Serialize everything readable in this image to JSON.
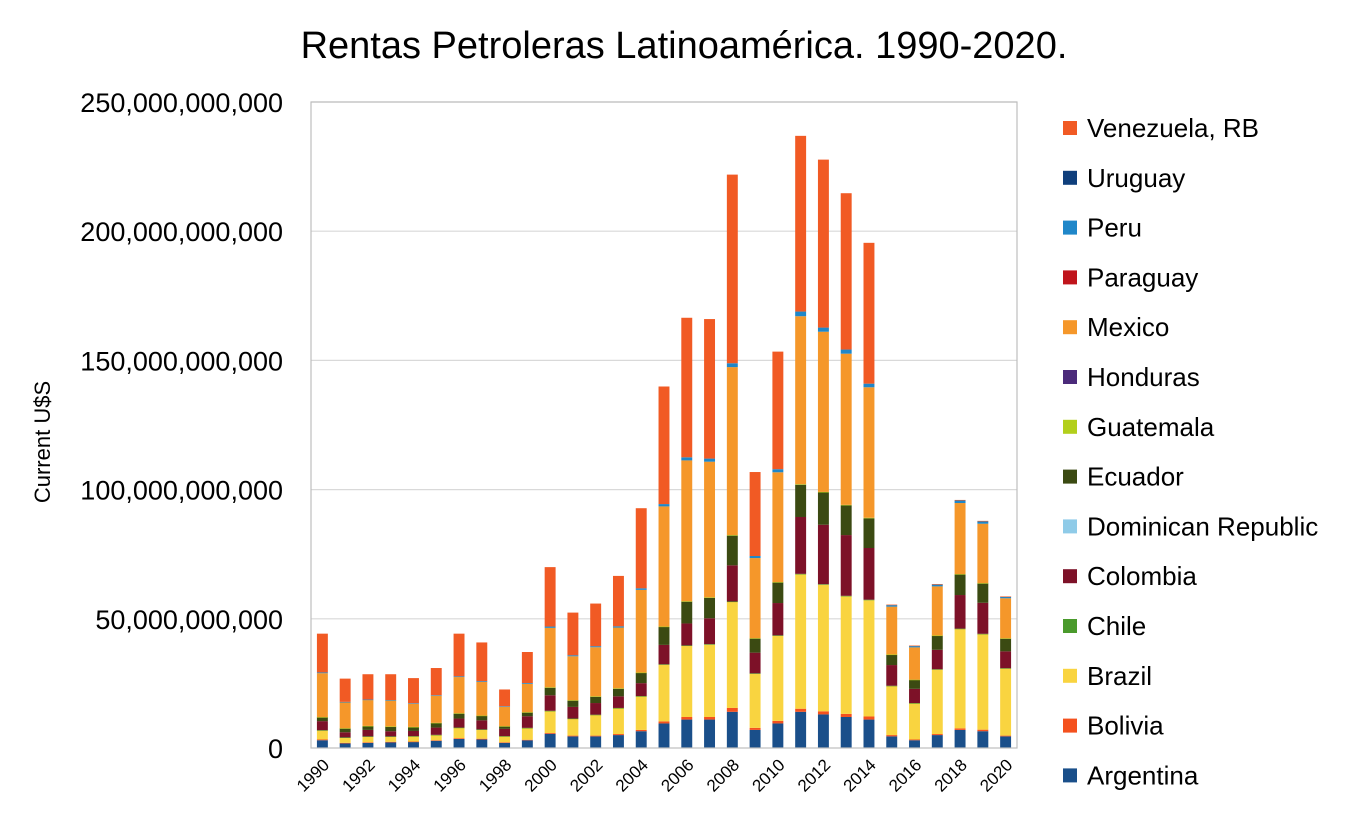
{
  "chart_data": {
    "type": "bar",
    "stacked": true,
    "title": "Rentas Petroleras Latinoamérica. 1990-2020.",
    "xlabel": "",
    "ylabel": "Current U$S",
    "ylim": [
      0,
      250000000000
    ],
    "yticks": [
      {
        "value": 0,
        "label": "0"
      },
      {
        "value": 50000000000,
        "label": "50,000,000,000"
      },
      {
        "value": 100000000000,
        "label": "100,000,000,000"
      },
      {
        "value": 150000000000,
        "label": "150,000,000,000"
      },
      {
        "value": 200000000000,
        "label": "200,000,000,000"
      },
      {
        "value": 250000000000,
        "label": "250,000,000,000"
      }
    ],
    "grid": true,
    "legend_position": "right",
    "categories": [
      1990,
      1991,
      1992,
      1993,
      1994,
      1995,
      1996,
      1997,
      1998,
      1999,
      2000,
      2001,
      2002,
      2003,
      2004,
      2005,
      2006,
      2007,
      2008,
      2009,
      2010,
      2011,
      2012,
      2013,
      2014,
      2015,
      2016,
      2017,
      2018,
      2019,
      2020
    ],
    "x_tick_labels": [
      "1990",
      "",
      "1992",
      "",
      "1994",
      "",
      "1996",
      "",
      "1998",
      "",
      "2000",
      "",
      "2002",
      "",
      "2004",
      "",
      "2006",
      "",
      "2008",
      "",
      "2010",
      "",
      "2012",
      "",
      "2014",
      "",
      "2016",
      "",
      "2018",
      "",
      "2020"
    ],
    "series": [
      {
        "name": "Argentina",
        "color": "#1a4f8a",
        "values": [
          3000000000.0,
          1800000000.0,
          2000000000.0,
          2200000000.0,
          2300000000.0,
          2800000000.0,
          3500000000.0,
          3300000000.0,
          2000000000.0,
          3000000000.0,
          5500000000.0,
          4500000000.0,
          4500000000.0,
          5000000000.0,
          6500000000.0,
          9500000000.0,
          11000000000.0,
          11000000000.0,
          14000000000.0,
          7000000000.0,
          9500000000.0,
          14000000000.0,
          13000000000.0,
          12000000000.0,
          11000000000.0,
          4500000000.0,
          3000000000.0,
          5000000000.0,
          7000000000.0,
          6500000000.0,
          4500000000.0
        ]
      },
      {
        "name": "Bolivia",
        "color": "#f4511e",
        "values": [
          300000000.0,
          200000000.0,
          200000000.0,
          200000000.0,
          200000000.0,
          200000000.0,
          300000000.0,
          300000000.0,
          200000000.0,
          200000000.0,
          300000000.0,
          300000000.0,
          300000000.0,
          400000000.0,
          500000000.0,
          800000000.0,
          1000000000.0,
          1000000000.0,
          1500000000.0,
          800000000.0,
          1000000000.0,
          1200000000.0,
          1200000000.0,
          1200000000.0,
          1200000000.0,
          500000000.0,
          300000000.0,
          400000000.0,
          600000000.0,
          600000000.0,
          300000000.0
        ]
      },
      {
        "name": "Brazil",
        "color": "#f9d440",
        "values": [
          3500000000.0,
          2000000000.0,
          2200000000.0,
          2000000000.0,
          2000000000.0,
          2000000000.0,
          4000000000.0,
          3500000000.0,
          2300000000.0,
          4500000000.0,
          8500000000.0,
          6500000000.0,
          8000000000.0,
          10000000000.0,
          13000000000.0,
          22000000000.0,
          27500000000.0,
          28000000000.0,
          41000000000.0,
          21000000000.0,
          33000000000.0,
          52000000000.0,
          49000000000.0,
          45500000000.0,
          45000000000.0,
          19000000000.0,
          14000000000.0,
          25000000000.0,
          38500000000.0,
          37000000000.0,
          26000000000.0
        ]
      },
      {
        "name": "Chile",
        "color": "#4a9a2c",
        "values": [
          100000000.0,
          100000000.0,
          100000000.0,
          100000000.0,
          100000000.0,
          100000000.0,
          100000000.0,
          100000000.0,
          100000000.0,
          100000000.0,
          100000000.0,
          100000000.0,
          100000000.0,
          100000000.0,
          100000000.0,
          100000000.0,
          200000000.0,
          200000000.0,
          200000000.0,
          100000000.0,
          100000000.0,
          200000000.0,
          200000000.0,
          200000000.0,
          200000000.0,
          100000000.0,
          100000000.0,
          100000000.0,
          100000000.0,
          100000000.0,
          100000000.0
        ]
      },
      {
        "name": "Colombia",
        "color": "#7d1128",
        "values": [
          3500000000.0,
          2000000000.0,
          2500000000.0,
          2000000000.0,
          2000000000.0,
          2800000000.0,
          3500000000.0,
          3500000000.0,
          2800000000.0,
          4500000000.0,
          6000000000.0,
          4500000000.0,
          4500000000.0,
          4500000000.0,
          5000000000.0,
          7500000000.0,
          8500000000.0,
          10000000000.0,
          14000000000.0,
          8000000000.0,
          12500000000.0,
          22000000000.0,
          23000000000.0,
          23500000000.0,
          20000000000.0,
          8000000000.0,
          5500000000.0,
          7500000000.0,
          13000000000.0,
          12000000000.0,
          6500000000.0
        ]
      },
      {
        "name": "Dominican Republic",
        "color": "#8fcbe8",
        "values": [
          0,
          0,
          0,
          0,
          0,
          0,
          0,
          0,
          0,
          0,
          0,
          0,
          0,
          0,
          0,
          0,
          0,
          0,
          0,
          0,
          0,
          0,
          0,
          0,
          0,
          0,
          0,
          0,
          0,
          0,
          0
        ]
      },
      {
        "name": "Ecuador",
        "color": "#3b4a12",
        "values": [
          1500000000.0,
          1500000000.0,
          1500000000.0,
          1800000000.0,
          1500000000.0,
          1800000000.0,
          2000000000.0,
          1800000000.0,
          1000000000.0,
          1500000000.0,
          3000000000.0,
          2500000000.0,
          2500000000.0,
          3000000000.0,
          4000000000.0,
          7000000000.0,
          8500000000.0,
          8000000000.0,
          11500000000.0,
          5500000000.0,
          8000000000.0,
          12500000000.0,
          12500000000.0,
          11500000000.0,
          11500000000.0,
          4000000000.0,
          3500000000.0,
          5500000000.0,
          8000000000.0,
          7500000000.0,
          5000000000.0
        ]
      },
      {
        "name": "Guatemala",
        "color": "#b2cf1b",
        "values": [
          50000000.0,
          50000000.0,
          50000000.0,
          50000000.0,
          50000000.0,
          50000000.0,
          50000000.0,
          50000000.0,
          50000000.0,
          50000000.0,
          100000000.0,
          100000000.0,
          100000000.0,
          100000000.0,
          100000000.0,
          100000000.0,
          100000000.0,
          100000000.0,
          200000000.0,
          100000000.0,
          100000000.0,
          200000000.0,
          200000000.0,
          200000000.0,
          200000000.0,
          100000000.0,
          50000000.0,
          50000000.0,
          100000000.0,
          100000000.0,
          50000000.0
        ]
      },
      {
        "name": "Honduras",
        "color": "#4b2a7a",
        "values": [
          0,
          0,
          0,
          0,
          0,
          0,
          0,
          0,
          0,
          0,
          0,
          0,
          0,
          0,
          0,
          0,
          0,
          0,
          0,
          0,
          0,
          0,
          0,
          0,
          0,
          0,
          0,
          0,
          0,
          0,
          0
        ]
      },
      {
        "name": "Mexico",
        "color": "#f5972a",
        "values": [
          17000000000.0,
          10000000000.0,
          10000000000.0,
          10000000000.0,
          9000000000.0,
          10500000000.0,
          14000000000.0,
          13000000000.0,
          7500000000.0,
          11000000000.0,
          23000000000.0,
          17000000000.0,
          19000000000.0,
          23500000000.0,
          32000000000.0,
          46500000000.0,
          54500000000.0,
          52500000000.0,
          65000000000.0,
          31000000000.0,
          42500000000.0,
          65000000000.0,
          62000000000.0,
          58500000000.0,
          50500000000.0,
          18500000000.0,
          12500000000.0,
          19000000000.0,
          27500000000.0,
          23000000000.0,
          15500000000.0
        ]
      },
      {
        "name": "Paraguay",
        "color": "#c0141c",
        "values": [
          0,
          0,
          0,
          0,
          0,
          0,
          0,
          0,
          0,
          0,
          0,
          0,
          0,
          0,
          0,
          0,
          0,
          0,
          0,
          0,
          0,
          0,
          0,
          0,
          0,
          0,
          0,
          0,
          0,
          0,
          0
        ]
      },
      {
        "name": "Peru",
        "color": "#1f87c9",
        "values": [
          300000000.0,
          200000000.0,
          200000000.0,
          200000000.0,
          200000000.0,
          200000000.0,
          300000000.0,
          300000000.0,
          200000000.0,
          300000000.0,
          500000000.0,
          400000000.0,
          400000000.0,
          500000000.0,
          600000000.0,
          900000000.0,
          1200000000.0,
          1200000000.0,
          1500000000.0,
          800000000.0,
          1200000000.0,
          1800000000.0,
          1600000000.0,
          1600000000.0,
          1400000000.0,
          600000000.0,
          500000000.0,
          700000000.0,
          1000000000.0,
          900000000.0,
          600000000.0
        ]
      },
      {
        "name": "Uruguay",
        "color": "#0f3f7c",
        "values": [
          0,
          0,
          0,
          0,
          0,
          0,
          0,
          0,
          0,
          0,
          0,
          0,
          0,
          0,
          0,
          0,
          0,
          0,
          0,
          0,
          0,
          0,
          0,
          0,
          0,
          0,
          0,
          0,
          0,
          0,
          0
        ]
      },
      {
        "name": "Venezuela, RB",
        "color": "#f15a24",
        "values": [
          15000000000.0,
          9000000000.0,
          9800000000.0,
          10000000000.0,
          9700000000.0,
          10500000000.0,
          16500000000.0,
          15000000000.0,
          6500000000.0,
          12000000000.0,
          23000000000.0,
          16500000000.0,
          16500000000.0,
          19500000000.0,
          31000000000.0,
          45500000000.0,
          54000000000.0,
          54000000000.0,
          73000000000.0,
          32500000000.0,
          45500000000.0,
          68000000000.0,
          65000000000.0,
          60500000000.0,
          54500000000.0,
          200000000.0,
          200000000.0,
          200000000.0,
          200000000.0,
          200000000.0,
          100000000.0
        ]
      }
    ]
  }
}
